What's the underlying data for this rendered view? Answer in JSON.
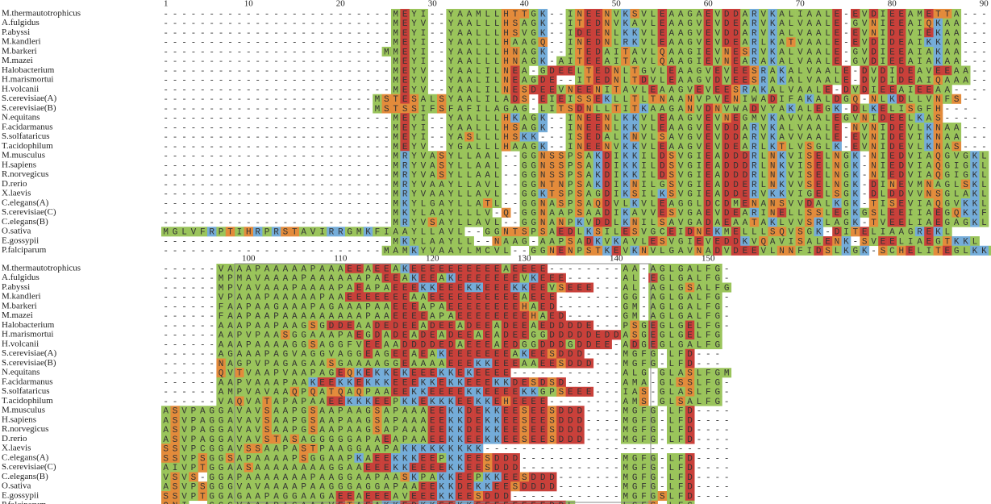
{
  "ruler_top": [
    1,
    10,
    20,
    30,
    40,
    50,
    60,
    70,
    80,
    90
  ],
  "ruler_bottom": [
    100,
    110,
    120,
    130,
    140,
    150
  ],
  "names": [
    "M.thermautotrophicus",
    "A.fulgidus",
    "P.abyssi",
    "M.kandleri",
    "M.barkeri",
    "M.mazei",
    "Halobacterium",
    "H.marismortui",
    "H.volcanii",
    "S.cerevisiae(A)",
    "S.cerevisiae(B)",
    "N.equitans",
    "F.acidarmanus",
    "S.solfataricus",
    "T.acidophilum",
    "M.musculus",
    "H.sapiens",
    "R.norvegicus",
    "D.rerio",
    "X.laevis",
    "C.elegans(A)",
    "S.cerevisiae(C)",
    "C.elegans(B)",
    "O.sativa",
    "E.gossypii",
    "P.falciparum"
  ],
  "block1": [
    "-------------------------MEYI--YAAMLLHTTGK--INEENVKSVLEAAGAEVDDARVKALIAALE-EVDIEEAMETTA----",
    "-------------------------MEYV--YAALLLHSAGK--ITEDNVKAVLEAAGVEVDEARVKALVAALE-GVNIEEAIQKAA----",
    "-------------------------MEYI--YAALLLHSVGK--IDEENLKKVLEAAGVEVDDARVKALVAALE-EVNIDEVIEKAA----",
    "-------------------------MEYI--YAALLLHAAGQ--INEDNLRKVLEAAGVEVDEARLKATVAALE-EVDIDEAIKKAA----",
    "------------------------MMEYI--YAALLLHNAGK--ITEDAITAVLQAAGIEVNESRVKALVAALE-GVDIEEAIAKAA----",
    "-------------------------MEYI--YAALLLHNAGK-AITEEAITAVLQAAGIEVNEARAKALVAALE-GVDIEEAIAKAA----",
    "-------------------------MEYV--YAALILNEA-GDEELTEDNLTGVLEAAGVEVEESRAKALVAALE-DVDIDEAVEEAA----",
    "-------------------------MEYV--YAALILNEAGDE--ITEDNLTDVLEAAGVDVEESRAKALVAALE-DVDIDEAIQAAA----",
    "-------------------------MEYV--YAALILNESDEEVNEENITAVLEAAGVEVEESRAKALVAALE-DVDIEEAIEEAA----",
    "-----------------------MSTESALSYAALILADS-EIEISSEKLLTLTNAANVPVENIWADIFAKALDGQ-NLKDLLVNFS--",
    "-----------------------MSTSSIFSFAFILAGAG-LITSDNLLTITKAAGANVDNVWADVYAKALEGK-DLKELISGFH---",
    "-------------------------MEYI--YAALLLHKAGK--INEENLKKVLEAAGVEVNEGMVKAVVAALEGVNIDEELKAS----",
    "-------------------------MEYI--YAALLLHSAGK--INEENLKKVLEAAGVEVDDARVKALVAALE-NVNIDEVLKNAA----",
    "-------------------------MEYI--YASLLLHSKK---ISEDALKNVLSAVGVEVDDARVKAVVAALE-EVNIDEVIKNAA----",
    "-------------------------MEYV--YGALLLHAAGK--INEENVKKVLEAAGVEVDEARLKTLVSGLK-EVNIDEVLKNAS----",
    "-------------------------MRYVASYLLAAL--GGNSSPSAKDIKKILDSVGIEADDDRLNKVISELNGK-NIEDVIAQGVGKL",
    "-------------------------MRYVASYLLAAL--GGNSSPSAKDIKKILDSVGIEADDDRLNKVISELNGK-NIEDVIAQGIGKL",
    "-------------------------MRYVASYLLAAL--GGNSSPSAKDIKKILDSVGIEADDDRLNKVISELNGK-NIEDVIAQGIGKL",
    "-------------------------MRYVAAYLLAVL--GGNTNPSAKDIKNILGSVGIEADDERLNKVVSELNGK-DINEVMNAGLSKL",
    "-------------------------MRYVAAYLLAVL--GGKTSPSAGDIKSILKSVGIEADDERVKKVIGELSGK-DLDDVVNSGLAKL",
    "-------------------------MKYLGAYLLATL--GGNASPSAQDVLKVLEAGGLDCDMENANSVVDALKGK-TISEVIAQGVKKL",
    "-------------------------MKYLAAYLLLV-Q-GGNAAPSAADIKAVVESVGAEVDEARINELLSSLEGKGSLEEIIAEGQKKF",
    "-------------------------MRYVSAYLLAVL--GGNANPKVDDLKNILSAVGADAEAATAKLVVSRLAGK-TVEELIAEGAGKL",
    "MGLVFRPTIHRPRSTAVIRRGMKFIAAYLLAVL--GGNTSPSAEDLKSILESVGCEIDNEKMELLLSQVSGK-DITELIAAGREKL",
    "-------------------------MKYLAAYLL--NAAG-AAPSADKVKAVLESVGIEVEDDKVQAVISALENK-SVEELIAEGTKKL",
    "------------------------MAMKYVAAYLMCVL--GGNENPSTKEVKNVLGAVNADVDEEVLNNFIDSLKGK-SCHELITEGLKKL"
  ],
  "block2": [
    "------VAAAPAAAAAPAAAEEAEEAKEEEEEEEEEEAEEEE--------AA-AGLGALFG-",
    "------MPMAVAAAAPAAAAAAPAEEAKEEAKEEEEEEEVKEEE------AL-EGLGALFG-",
    "------MPVAVAAAPAAAAPAEAPAEEEKKEEEKKEEEKKEEVSEEE---AL-AGLGSALFG",
    "------VPAAAPAAAAAPAAEEEEEEEAAEEEEEEEEEEAEEE-------GG-AGLGALFG-",
    "------FAAPAAGAAAPAGAAAPAAEEEAPAEEEEEEEEHAED-------GM-AGLGALFG-",
    "------FAAPAAPAAAAAAAAAPAAEEEEAPAEEEEEEEEHAED------GM-AGLGALFG-",
    "------AAAPAAPAAGSGDDEAADEDEEADEEADEEADEEAEDDDDE---PSGEGLGELFG-",
    "------AAPVPAASGGAAAPAEGDADEADEADEEAEADEEGGDDDDDEDDASGEGLGELFG",
    "------AAAPAAAAGGSAGGFVEEAADDDDEDAEEEAEDGGDDDGDDEE-ADGEGLGALFG",
    "------AGAAAPAGVAGGVAGGEAGEEAEAKEEEEEEEAKEESDDD----MGFG-LFD---",
    "------NAGPVPAGAGAASGAAAAGGEAAAAEEEKKEEEAAEESDDD---MGFG-LFD---",
    "------QVTVAAPVAAPAGEQKEKKEKEEEKKEKEEEE------------ALG-GLASLFGM",
    "------AAPVAAAPAAKEEKKEKKKEEEKKEKKEEEKKDESDSD------AMA-GLSSLFG-",
    "------AMPVAVAAQPQATQAQPAAEEKKEEEEKKEEEEKKGPSEEE---IAS-GLASLFG-",
    "------VAQVATAPAPAAEEKKKEEPKKEKKKEEKKEHEEEE--------AMS-GLSALFG-",
    "ASVPAGGAVAVSAAPGSAAPAAGSAPAAAEEKKDEKKEESEESDDD----MGFG-LFD----",
    "ASVPAGGAVAVSAAPGSAAPAAGSAPAAAEEKKDEKKEESEESDDD----MGFG-LFD----",
    "ASVPAGGAVAVSAAPGSAAPAAGSAPAAAEEKKDEKKEESEESDDD----MGFG-LFD----",
    "ASVPAGGAVAVSTASAGGGGGAPAEAPAAEEKKEEKKEESEESDDD----MGFG-LFD----",
    "SSVPCGGAVSSAAPASTPAAGGAAPAKKKKKKKKK---------------------------",
    "SSVPSGGSAPAAAAPSGGAAPKAEEKKKEEPKKEESDDD-----------MGFG-LFD----",
    "AIVPTGGAASAAAAAAAAGGAAEEEKKEEEEKKEESDDD-----------MGFG-LFD----",
    "VSVS-GGAPAAAAAAAPAAGGAAPAASKPAKKEEPKKEESDDD-------MGFG-LFD----",
    "ASVPSGGGVAVAAAAPAAGGGAGGAPAAEEKKDEKKEESDDDD-------MGFG-LFD----",
    "SSVPTGGAGAAPAGGAAGAEEAEEEAVEEEKKEESDDD------------MGFGSLFD----",
    "QNI--GGGVAAAPAGAAAVETAEAKKEDKKEEKKEEEEEEEEDDL-----LGFS-LFG----"
  ]
}
